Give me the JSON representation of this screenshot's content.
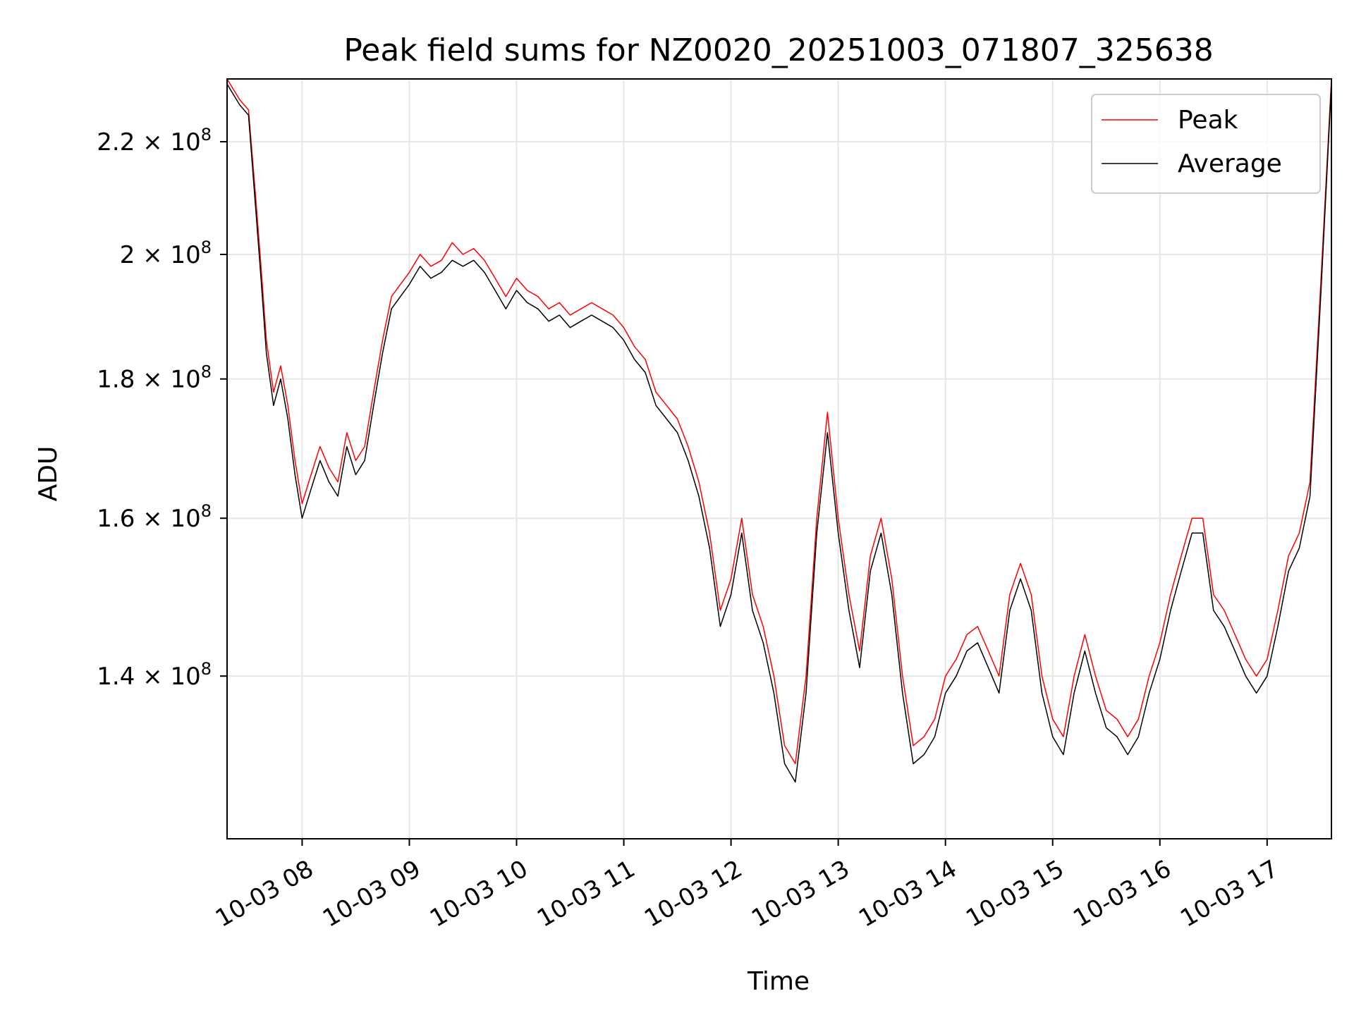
{
  "chart_data": {
    "type": "line",
    "title": "Peak field sums for NZ0020_20251003_071807_325638",
    "xlabel": "Time",
    "ylabel": "ADU",
    "yscale": "log",
    "ylim": [
      122000000,
      232000000
    ],
    "xlim": [
      "2025-10-03 07:18",
      "2025-10-03 17:36"
    ],
    "grid": true,
    "legend_position": "upper right",
    "x_ticks": [
      {
        "t": "2025-10-03 08:00",
        "label": "10-03 08"
      },
      {
        "t": "2025-10-03 09:00",
        "label": "10-03 09"
      },
      {
        "t": "2025-10-03 10:00",
        "label": "10-03 10"
      },
      {
        "t": "2025-10-03 11:00",
        "label": "10-03 11"
      },
      {
        "t": "2025-10-03 12:00",
        "label": "10-03 12"
      },
      {
        "t": "2025-10-03 13:00",
        "label": "10-03 13"
      },
      {
        "t": "2025-10-03 14:00",
        "label": "10-03 14"
      },
      {
        "t": "2025-10-03 15:00",
        "label": "10-03 15"
      },
      {
        "t": "2025-10-03 16:00",
        "label": "10-03 16"
      },
      {
        "t": "2025-10-03 17:00",
        "label": "10-03 17"
      }
    ],
    "y_ticks": [
      {
        "value": 140000000,
        "base": "1.4",
        "exp": "8"
      },
      {
        "value": 160000000,
        "base": "1.6",
        "exp": "8"
      },
      {
        "value": 180000000,
        "base": "1.8",
        "exp": "8"
      },
      {
        "value": 200000000,
        "base": "2",
        "exp": "8"
      },
      {
        "value": 220000000,
        "base": "2.2",
        "exp": "8"
      }
    ],
    "tick_times_separator": "×",
    "tick_base_number": "10",
    "series": [
      {
        "name": "Peak",
        "color": "#ff0000",
        "x": [
          "2025-10-03 07:18",
          "2025-10-03 07:25",
          "2025-10-03 07:30",
          "2025-10-03 07:34",
          "2025-10-03 07:37",
          "2025-10-03 07:40",
          "2025-10-03 07:44",
          "2025-10-03 07:48",
          "2025-10-03 07:52",
          "2025-10-03 07:56",
          "2025-10-03 08:00",
          "2025-10-03 08:05",
          "2025-10-03 08:10",
          "2025-10-03 08:15",
          "2025-10-03 08:20",
          "2025-10-03 08:25",
          "2025-10-03 08:30",
          "2025-10-03 08:35",
          "2025-10-03 08:40",
          "2025-10-03 08:45",
          "2025-10-03 08:50",
          "2025-10-03 08:55",
          "2025-10-03 09:00",
          "2025-10-03 09:06",
          "2025-10-03 09:12",
          "2025-10-03 09:18",
          "2025-10-03 09:24",
          "2025-10-03 09:30",
          "2025-10-03 09:36",
          "2025-10-03 09:42",
          "2025-10-03 09:48",
          "2025-10-03 09:54",
          "2025-10-03 10:00",
          "2025-10-03 10:06",
          "2025-10-03 10:12",
          "2025-10-03 10:18",
          "2025-10-03 10:24",
          "2025-10-03 10:30",
          "2025-10-03 10:36",
          "2025-10-03 10:42",
          "2025-10-03 10:48",
          "2025-10-03 10:54",
          "2025-10-03 11:00",
          "2025-10-03 11:06",
          "2025-10-03 11:12",
          "2025-10-03 11:18",
          "2025-10-03 11:24",
          "2025-10-03 11:30",
          "2025-10-03 11:36",
          "2025-10-03 11:42",
          "2025-10-03 11:48",
          "2025-10-03 11:54",
          "2025-10-03 12:00",
          "2025-10-03 12:06",
          "2025-10-03 12:12",
          "2025-10-03 12:18",
          "2025-10-03 12:24",
          "2025-10-03 12:30",
          "2025-10-03 12:36",
          "2025-10-03 12:42",
          "2025-10-03 12:48",
          "2025-10-03 12:54",
          "2025-10-03 13:00",
          "2025-10-03 13:06",
          "2025-10-03 13:12",
          "2025-10-03 13:18",
          "2025-10-03 13:24",
          "2025-10-03 13:30",
          "2025-10-03 13:36",
          "2025-10-03 13:42",
          "2025-10-03 13:48",
          "2025-10-03 13:54",
          "2025-10-03 14:00",
          "2025-10-03 14:06",
          "2025-10-03 14:12",
          "2025-10-03 14:18",
          "2025-10-03 14:24",
          "2025-10-03 14:30",
          "2025-10-03 14:36",
          "2025-10-03 14:42",
          "2025-10-03 14:48",
          "2025-10-03 14:54",
          "2025-10-03 15:00",
          "2025-10-03 15:06",
          "2025-10-03 15:12",
          "2025-10-03 15:18",
          "2025-10-03 15:24",
          "2025-10-03 15:30",
          "2025-10-03 15:36",
          "2025-10-03 15:42",
          "2025-10-03 15:48",
          "2025-10-03 15:54",
          "2025-10-03 16:00",
          "2025-10-03 16:06",
          "2025-10-03 16:12",
          "2025-10-03 16:18",
          "2025-10-03 16:24",
          "2025-10-03 16:30",
          "2025-10-03 16:36",
          "2025-10-03 16:42",
          "2025-10-03 16:48",
          "2025-10-03 16:54",
          "2025-10-03 17:00",
          "2025-10-03 17:06",
          "2025-10-03 17:12",
          "2025-10-03 17:18",
          "2025-10-03 17:24",
          "2025-10-03 17:30",
          "2025-10-03 17:36"
        ],
        "y": [
          232000000,
          228000000,
          226000000,
          210000000,
          198000000,
          186000000,
          178000000,
          182000000,
          176000000,
          168000000,
          162000000,
          166000000,
          170000000,
          167000000,
          165000000,
          172000000,
          168000000,
          170000000,
          178000000,
          186000000,
          193000000,
          195000000,
          197000000,
          200000000,
          198000000,
          199000000,
          202000000,
          200000000,
          201000000,
          199000000,
          196000000,
          193000000,
          196000000,
          194000000,
          193000000,
          191000000,
          192000000,
          190000000,
          191000000,
          192000000,
          191000000,
          190000000,
          188000000,
          185000000,
          183000000,
          178000000,
          176000000,
          174000000,
          170000000,
          165000000,
          158000000,
          148000000,
          152000000,
          160000000,
          150000000,
          146000000,
          140000000,
          132000000,
          130000000,
          140000000,
          160000000,
          175000000,
          160000000,
          150000000,
          143000000,
          155000000,
          160000000,
          152000000,
          140000000,
          132000000,
          133000000,
          135000000,
          140000000,
          142000000,
          145000000,
          146000000,
          143000000,
          140000000,
          150000000,
          154000000,
          150000000,
          140000000,
          135000000,
          133000000,
          140000000,
          145000000,
          140000000,
          136000000,
          135000000,
          133000000,
          135000000,
          140000000,
          144000000,
          150000000,
          155000000,
          160000000,
          160000000,
          150000000,
          148000000,
          145000000,
          142000000,
          140000000,
          142000000,
          148000000,
          155000000,
          158000000,
          165000000,
          195000000,
          232000000
        ]
      },
      {
        "name": "Average",
        "color": "#000000",
        "x": [
          "2025-10-03 07:18",
          "2025-10-03 07:25",
          "2025-10-03 07:30",
          "2025-10-03 07:34",
          "2025-10-03 07:37",
          "2025-10-03 07:40",
          "2025-10-03 07:44",
          "2025-10-03 07:48",
          "2025-10-03 07:52",
          "2025-10-03 07:56",
          "2025-10-03 08:00",
          "2025-10-03 08:05",
          "2025-10-03 08:10",
          "2025-10-03 08:15",
          "2025-10-03 08:20",
          "2025-10-03 08:25",
          "2025-10-03 08:30",
          "2025-10-03 08:35",
          "2025-10-03 08:40",
          "2025-10-03 08:45",
          "2025-10-03 08:50",
          "2025-10-03 08:55",
          "2025-10-03 09:00",
          "2025-10-03 09:06",
          "2025-10-03 09:12",
          "2025-10-03 09:18",
          "2025-10-03 09:24",
          "2025-10-03 09:30",
          "2025-10-03 09:36",
          "2025-10-03 09:42",
          "2025-10-03 09:48",
          "2025-10-03 09:54",
          "2025-10-03 10:00",
          "2025-10-03 10:06",
          "2025-10-03 10:12",
          "2025-10-03 10:18",
          "2025-10-03 10:24",
          "2025-10-03 10:30",
          "2025-10-03 10:36",
          "2025-10-03 10:42",
          "2025-10-03 10:48",
          "2025-10-03 10:54",
          "2025-10-03 11:00",
          "2025-10-03 11:06",
          "2025-10-03 11:12",
          "2025-10-03 11:18",
          "2025-10-03 11:24",
          "2025-10-03 11:30",
          "2025-10-03 11:36",
          "2025-10-03 11:42",
          "2025-10-03 11:48",
          "2025-10-03 11:54",
          "2025-10-03 12:00",
          "2025-10-03 12:06",
          "2025-10-03 12:12",
          "2025-10-03 12:18",
          "2025-10-03 12:24",
          "2025-10-03 12:30",
          "2025-10-03 12:36",
          "2025-10-03 12:42",
          "2025-10-03 12:48",
          "2025-10-03 12:54",
          "2025-10-03 13:00",
          "2025-10-03 13:06",
          "2025-10-03 13:12",
          "2025-10-03 13:18",
          "2025-10-03 13:24",
          "2025-10-03 13:30",
          "2025-10-03 13:36",
          "2025-10-03 13:42",
          "2025-10-03 13:48",
          "2025-10-03 13:54",
          "2025-10-03 14:00",
          "2025-10-03 14:06",
          "2025-10-03 14:12",
          "2025-10-03 14:18",
          "2025-10-03 14:24",
          "2025-10-03 14:30",
          "2025-10-03 14:36",
          "2025-10-03 14:42",
          "2025-10-03 14:48",
          "2025-10-03 14:54",
          "2025-10-03 15:00",
          "2025-10-03 15:06",
          "2025-10-03 15:12",
          "2025-10-03 15:18",
          "2025-10-03 15:24",
          "2025-10-03 15:30",
          "2025-10-03 15:36",
          "2025-10-03 15:42",
          "2025-10-03 15:48",
          "2025-10-03 15:54",
          "2025-10-03 16:00",
          "2025-10-03 16:06",
          "2025-10-03 16:12",
          "2025-10-03 16:18",
          "2025-10-03 16:24",
          "2025-10-03 16:30",
          "2025-10-03 16:36",
          "2025-10-03 16:42",
          "2025-10-03 16:48",
          "2025-10-03 16:54",
          "2025-10-03 17:00",
          "2025-10-03 17:06",
          "2025-10-03 17:12",
          "2025-10-03 17:18",
          "2025-10-03 17:24",
          "2025-10-03 17:30",
          "2025-10-03 17:36"
        ],
        "y": [
          231000000,
          227000000,
          225000000,
          208000000,
          196000000,
          184000000,
          176000000,
          180000000,
          174000000,
          166000000,
          160000000,
          164000000,
          168000000,
          165000000,
          163000000,
          170000000,
          166000000,
          168000000,
          176000000,
          184000000,
          191000000,
          193000000,
          195000000,
          198000000,
          196000000,
          197000000,
          199000000,
          198000000,
          199000000,
          197000000,
          194000000,
          191000000,
          194000000,
          192000000,
          191000000,
          189000000,
          190000000,
          188000000,
          189000000,
          190000000,
          189000000,
          188000000,
          186000000,
          183000000,
          181000000,
          176000000,
          174000000,
          172000000,
          168000000,
          163000000,
          156000000,
          146000000,
          150000000,
          158000000,
          148000000,
          144000000,
          138000000,
          130000000,
          128000000,
          138000000,
          158000000,
          172000000,
          158000000,
          148000000,
          141000000,
          153000000,
          158000000,
          150000000,
          138000000,
          130000000,
          131000000,
          133000000,
          138000000,
          140000000,
          143000000,
          144000000,
          141000000,
          138000000,
          148000000,
          152000000,
          148000000,
          138000000,
          133000000,
          131000000,
          138000000,
          143000000,
          138000000,
          134000000,
          133000000,
          131000000,
          133000000,
          138000000,
          142000000,
          148000000,
          153000000,
          158000000,
          158000000,
          148000000,
          146000000,
          143000000,
          140000000,
          138000000,
          140000000,
          146000000,
          153000000,
          156000000,
          163000000,
          193000000,
          231000000
        ]
      }
    ]
  }
}
